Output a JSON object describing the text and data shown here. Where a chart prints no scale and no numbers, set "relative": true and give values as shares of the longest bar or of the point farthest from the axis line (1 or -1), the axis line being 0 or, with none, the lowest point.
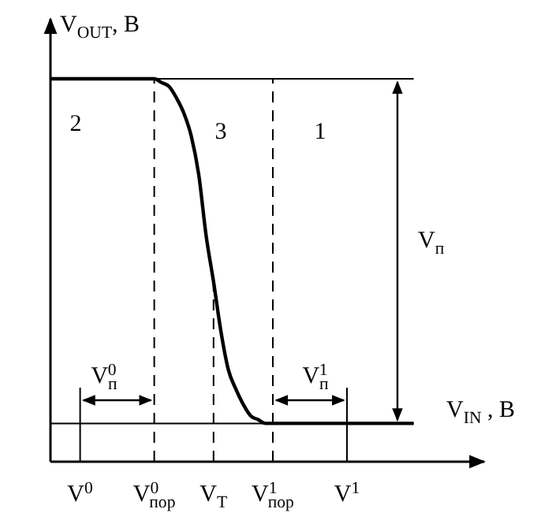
{
  "chart_data": {
    "type": "line",
    "relative": true,
    "xlabel": "V$_{IN}$ , В",
    "ylabel": "V$_{OUT}$, В",
    "tick_labels": "x",
    "line_style": "solid",
    "marker": "none",
    "categories": [
      null,
      null,
      null,
      null,
      "V$^{0}$",
      null,
      null,
      null,
      null,
      null,
      null,
      null,
      null,
      null,
      "V$^{0}$$_{пор}$",
      null,
      null,
      null,
      null,
      null,
      null,
      null,
      "V$_{T}$",
      null,
      null,
      null,
      null,
      null,
      null,
      null,
      "V$^{1}$$_{пор}$",
      null,
      null,
      null,
      null,
      null,
      null,
      null,
      null,
      null,
      "V$^{1}$",
      null,
      null,
      null,
      null,
      null,
      null,
      null,
      null,
      null
    ],
    "series": [
      {
        "color": "#000000",
        "values": [
          1,
          1,
          1,
          1,
          1,
          1,
          1,
          1,
          1,
          1,
          1,
          1,
          1,
          1,
          1,
          0.99,
          0.98,
          0.95,
          0.91,
          0.85,
          0.75,
          0.59,
          0.47,
          0.34,
          0.24,
          0.19,
          0.15,
          0.12,
          0.11,
          0.1,
          0.1,
          0.1,
          0.1,
          0.1,
          0.1,
          0.1,
          0.1,
          0.1,
          0.1,
          0.1,
          0.1,
          0.1,
          0.1,
          0.1,
          0.1,
          0.1,
          0.1,
          0.1,
          0.1,
          0.1
        ]
      }
    ],
    "ref_lines": [
      {
        "axis": "y",
        "value": 1,
        "label": null,
        "color": "#000000",
        "line_style": "solid"
      },
      {
        "axis": "y",
        "value": 0.1,
        "label": null,
        "color": "#000000",
        "line_style": "solid"
      },
      {
        "axis": "x",
        "value": "V$^{0}$",
        "label": null,
        "color": "#000000",
        "line_style": "solid"
      },
      {
        "axis": "x",
        "value": "V$^{0}$$_{пор}$",
        "label": null,
        "color": "#000000",
        "line_style": "dashed"
      },
      {
        "axis": "x",
        "value": "V$_{T}$",
        "label": null,
        "color": "#000000",
        "line_style": "dashed"
      },
      {
        "axis": "x",
        "value": "V$^{1}$$_{пор}$",
        "label": null,
        "color": "#000000",
        "line_style": "dashed"
      },
      {
        "axis": "x",
        "value": "V$^{1}$",
        "label": null,
        "color": "#000000",
        "line_style": "solid"
      }
    ],
    "annotations": [
      "2",
      "3",
      "1",
      "V$_{п}$",
      "V$_{п}$$^{0}$",
      "V$_{п}$$^{1}$"
    ]
  }
}
